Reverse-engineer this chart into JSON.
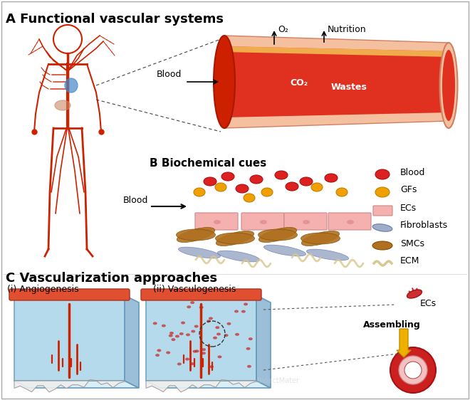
{
  "title_A": "A Functional vascular systems",
  "title_B": "B Biochemical cues",
  "title_C": "C Vascularization approaches",
  "sub_i": "(i) Angiogenesis",
  "sub_ii": "(ii) Vasculogenesis",
  "legend_items": [
    "Blood",
    "GFs",
    "ECs",
    "Fibroblasts",
    "SMCs",
    "ECM"
  ],
  "blood_red": "#CC2200",
  "blood_red2": "#E03010",
  "gf_orange": "#F0A000",
  "ec_pink": "#F4A0A0",
  "fibroblast_blue": "#8899BB",
  "smc_brown": "#B07020",
  "ecm_cream": "#E8D8B0",
  "vessel_outer": "#F4C0A0",
  "vessel_inner": "#E05030",
  "vessel_lumen": "#CC2200",
  "bg_color": "#FFFFFF",
  "text_color": "#000000",
  "hydrogel_blue": "#A8D4E8",
  "hydrogel_blue2": "#C8E4F0"
}
